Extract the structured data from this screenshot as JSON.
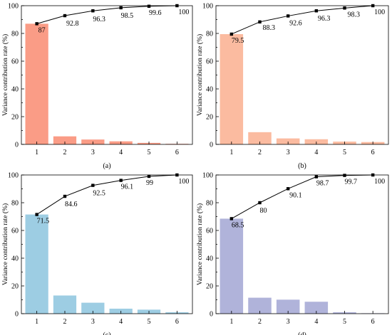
{
  "chart_data": [
    {
      "type": "bar",
      "caption": "(a)",
      "categories": [
        "1",
        "2",
        "3",
        "4",
        "5",
        "6"
      ],
      "ylabel": "Variance contribution rate (%)",
      "ylim": [
        0,
        100
      ],
      "yticks": [
        "0",
        "20",
        "40",
        "60",
        "80",
        "100"
      ],
      "bar_color": "#FA9C86",
      "series": [
        {
          "kind": "bar",
          "values": [
            87,
            5.8,
            3.5,
            2.2,
            1.1,
            0.4
          ]
        },
        {
          "kind": "line",
          "values": [
            87,
            92.8,
            96.3,
            98.5,
            99.6,
            100
          ],
          "labels": [
            "87",
            "92.8",
            "96.3",
            "98.5",
            "99.6",
            "100"
          ]
        }
      ]
    },
    {
      "type": "bar",
      "caption": "(b)",
      "categories": [
        "1",
        "2",
        "3",
        "4",
        "5",
        "6"
      ],
      "ylabel": "Variance contribution rate (%)",
      "ylim": [
        0,
        100
      ],
      "yticks": [
        "0",
        "20",
        "40",
        "60",
        "80",
        "100"
      ],
      "bar_color": "#FBBBA0",
      "series": [
        {
          "kind": "bar",
          "values": [
            79.5,
            8.8,
            4.3,
            3.7,
            2.0,
            1.7
          ]
        },
        {
          "kind": "line",
          "values": [
            79.5,
            88.3,
            92.6,
            96.3,
            98.3,
            100
          ],
          "labels": [
            "79.5",
            "88.3",
            "92.6",
            "96.3",
            "98.3",
            "100"
          ]
        }
      ]
    },
    {
      "type": "bar",
      "caption": "(c)",
      "categories": [
        "1",
        "2",
        "3",
        "4",
        "5",
        "6"
      ],
      "ylabel": "Variance contribution rate (%)",
      "ylim": [
        0,
        100
      ],
      "yticks": [
        "0",
        "20",
        "40",
        "60",
        "80",
        "100"
      ],
      "bar_color": "#9DCDE3",
      "series": [
        {
          "kind": "bar",
          "values": [
            71.5,
            13.1,
            7.9,
            3.6,
            2.9,
            1.0
          ]
        },
        {
          "kind": "line",
          "values": [
            71.5,
            84.6,
            92.5,
            96.1,
            99,
            100
          ],
          "labels": [
            "71.5",
            "84.6",
            "92.5",
            "96.1",
            "99",
            "100"
          ]
        }
      ]
    },
    {
      "type": "bar",
      "caption": "(d)",
      "categories": [
        "1",
        "2",
        "3",
        "4",
        "5",
        "6"
      ],
      "ylabel": "Variance contribution rate (%)",
      "ylim": [
        0,
        100
      ],
      "yticks": [
        "0",
        "20",
        "40",
        "60",
        "80",
        "100"
      ],
      "bar_color": "#B0B3DA",
      "series": [
        {
          "kind": "bar",
          "values": [
            68.5,
            11.5,
            10.1,
            8.6,
            1.0,
            0.3
          ]
        },
        {
          "kind": "line",
          "values": [
            68.5,
            80,
            90.1,
            98.7,
            99.7,
            100
          ],
          "labels": [
            "68.5",
            "80",
            "90.1",
            "98.7",
            "99.7",
            "100"
          ]
        }
      ]
    }
  ]
}
